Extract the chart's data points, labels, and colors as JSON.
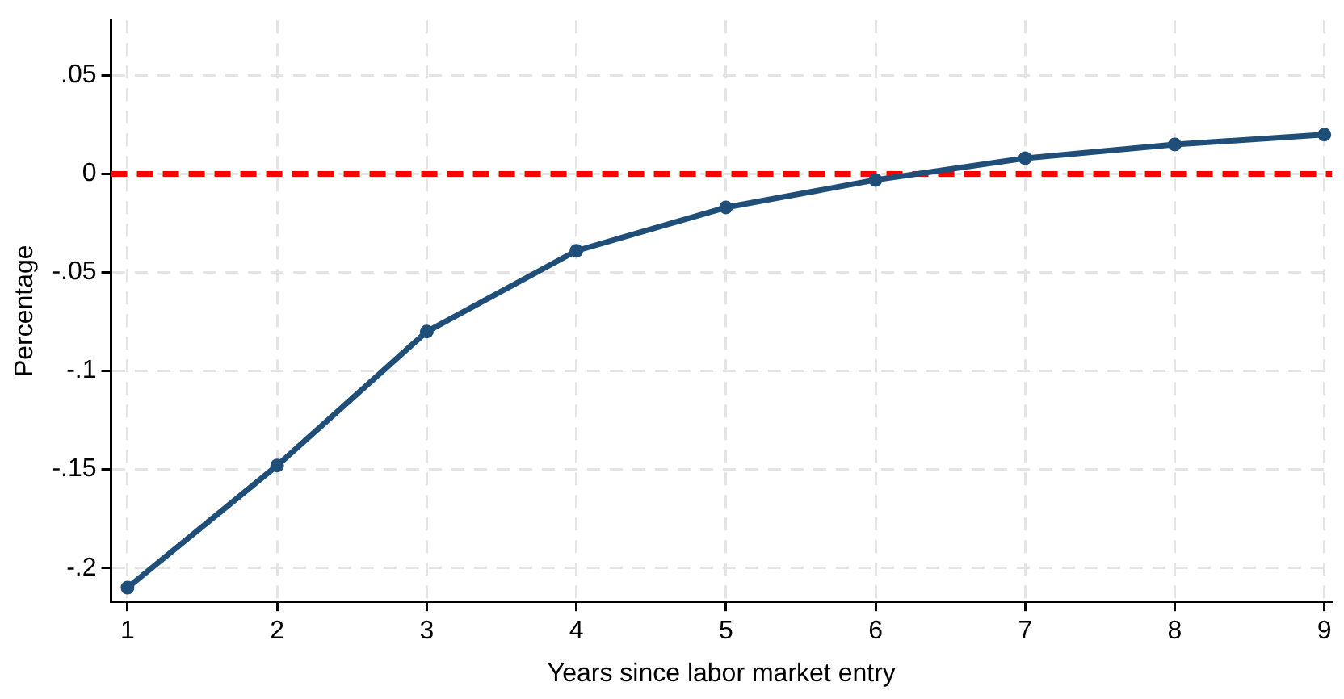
{
  "chart_data": {
    "type": "line",
    "xlabel": "Years since labor market entry",
    "ylabel": "Percentage",
    "x": [
      1,
      2,
      3,
      4,
      5,
      6,
      7,
      8,
      9
    ],
    "series": [
      {
        "color": "#1f4e79",
        "values": [
          -0.21,
          -0.148,
          -0.08,
          -0.039,
          -0.017,
          -0.003,
          0.008,
          0.015,
          0.02
        ]
      }
    ],
    "xlim": [
      0.89,
      9.05
    ],
    "xticks": [
      1,
      2,
      3,
      4,
      5,
      6,
      7,
      8,
      9
    ],
    "ylim": [
      -0.217,
      0.078
    ],
    "yticks": [
      {
        "value": -0.2,
        "label": "-.2"
      },
      {
        "value": -0.15,
        "label": "-.15"
      },
      {
        "value": -0.1,
        "label": "-.1"
      },
      {
        "value": -0.05,
        "label": "-.05"
      },
      0,
      {
        "value": 0.05,
        "label": ".05"
      }
    ],
    "ref_lines": [
      {
        "axis": "y",
        "value": 0,
        "color": "#ff0000",
        "line_style": "dashed"
      }
    ],
    "grid": true,
    "legend": false,
    "marker": "circle",
    "line_style": "solid"
  }
}
